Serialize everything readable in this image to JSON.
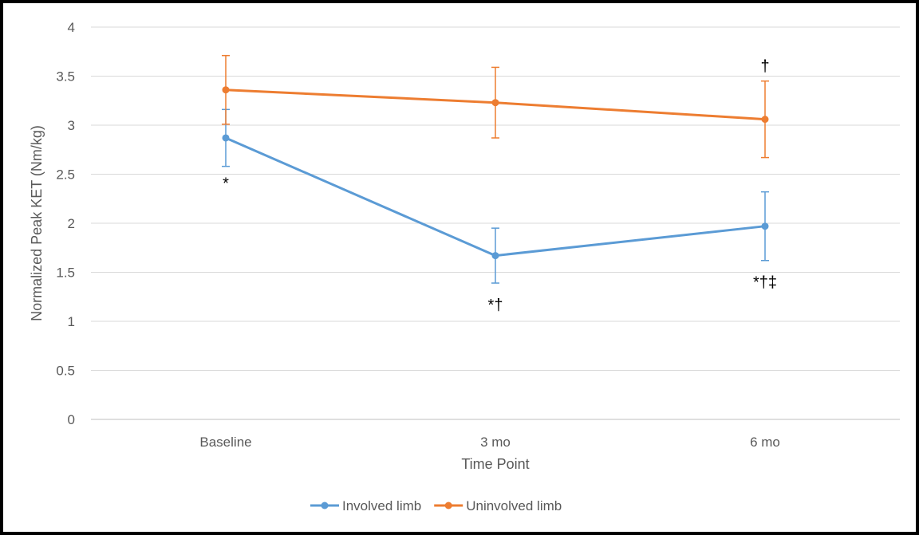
{
  "chart_data": {
    "type": "line",
    "title": "",
    "xlabel": "Time Point",
    "ylabel": "Normalized Peak KET (Nm/kg)",
    "categories": [
      "Baseline",
      "3 mo",
      "6 mo"
    ],
    "ylim": [
      0,
      4
    ],
    "yticks": [
      "0",
      "0.5",
      "1",
      "1.5",
      "2",
      "2.5",
      "3",
      "3.5",
      "4"
    ],
    "grid": true,
    "legend_position": "bottom",
    "series": [
      {
        "name": "Involved limb",
        "color": "#5B9BD5",
        "values": [
          2.87,
          1.67,
          1.97
        ],
        "error": [
          0.29,
          0.28,
          0.35
        ]
      },
      {
        "name": "Uninvolved limb",
        "color": "#ED7D31",
        "values": [
          3.36,
          3.23,
          3.06
        ],
        "error": [
          0.35,
          0.36,
          0.39
        ]
      }
    ],
    "annotations": [
      {
        "category": "Baseline",
        "text": "*",
        "anchor": "below",
        "series": "Involved limb"
      },
      {
        "category": "3 mo",
        "text": "*†",
        "anchor": "below",
        "series": "Involved limb"
      },
      {
        "category": "6 mo",
        "text": "*†‡",
        "anchor": "below",
        "series": "Involved limb"
      },
      {
        "category": "6 mo",
        "text": "†",
        "anchor": "above",
        "series": "Uninvolved limb"
      }
    ]
  }
}
